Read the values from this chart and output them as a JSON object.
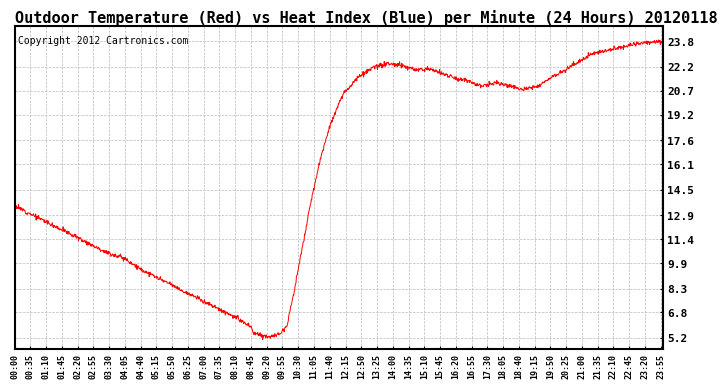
{
  "title": "Outdoor Temperature (Red) vs Heat Index (Blue) per Minute (24 Hours) 20120118",
  "copyright_text": "Copyright 2012 Cartronics.com",
  "title_fontsize": 11,
  "copyright_fontsize": 7,
  "line_color": "#ff0000",
  "background_color": "#ffffff",
  "grid_color": "#bbbbbb",
  "yticks": [
    5.2,
    6.8,
    8.3,
    9.9,
    11.4,
    12.9,
    14.5,
    16.1,
    17.6,
    19.2,
    20.7,
    22.2,
    23.8
  ],
  "ylim": [
    4.5,
    24.8
  ],
  "xtick_step": 35,
  "xtick_start": 0,
  "xlim_max": 1439,
  "keypoints_x": [
    0,
    35,
    70,
    105,
    140,
    175,
    210,
    245,
    280,
    315,
    350,
    385,
    420,
    455,
    490,
    525,
    530,
    545,
    560,
    575,
    590,
    605,
    620,
    640,
    660,
    680,
    700,
    730,
    760,
    800,
    830,
    860,
    890,
    920,
    950,
    980,
    1010,
    1040,
    1070,
    1100,
    1130,
    1160,
    1190,
    1220,
    1250,
    1280,
    1310,
    1340,
    1370,
    1400,
    1439
  ],
  "keypoints_y": [
    13.5,
    13.0,
    12.5,
    12.0,
    11.5,
    11.0,
    10.5,
    10.2,
    9.5,
    9.0,
    8.5,
    8.0,
    7.5,
    7.0,
    6.5,
    5.9,
    5.5,
    5.4,
    5.3,
    5.3,
    5.5,
    6.0,
    8.0,
    11.0,
    14.0,
    16.5,
    18.5,
    20.5,
    21.5,
    22.2,
    22.4,
    22.3,
    22.0,
    22.1,
    21.8,
    21.5,
    21.3,
    21.0,
    21.2,
    21.0,
    20.8,
    21.0,
    21.5,
    22.0,
    22.5,
    23.0,
    23.2,
    23.4,
    23.6,
    23.75,
    23.8
  ],
  "noise_seed": 12,
  "noise_std": 0.07
}
